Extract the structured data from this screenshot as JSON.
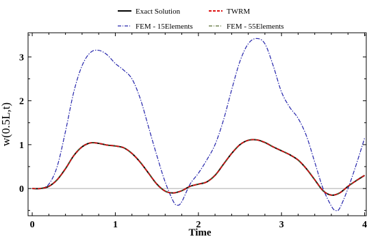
{
  "chart_data": {
    "type": "line",
    "title": "",
    "xlabel": "Time",
    "ylabel": "w(0.5L,t)",
    "xlim": [
      -0.05,
      4.02
    ],
    "ylim": [
      -0.62,
      3.55
    ],
    "xticks": [
      0,
      1,
      2,
      3,
      4
    ],
    "yticks": [
      0,
      1,
      2,
      3
    ],
    "xtick_labels": [
      "0",
      "1",
      "2",
      "3",
      "4"
    ],
    "ytick_labels": [
      "0",
      "1",
      "2",
      "3"
    ],
    "grid": false,
    "zero_line": true,
    "legend_position": "top",
    "series": [
      {
        "name": "Exact Solution",
        "color": "#000000",
        "style": "solid",
        "x": [
          0,
          0.1,
          0.2,
          0.3,
          0.4,
          0.5,
          0.6,
          0.7,
          0.8,
          0.9,
          1.0,
          1.1,
          1.2,
          1.3,
          1.4,
          1.5,
          1.6,
          1.7,
          1.8,
          1.9,
          2.0,
          2.1,
          2.2,
          2.3,
          2.4,
          2.5,
          2.6,
          2.7,
          2.8,
          2.9,
          3.0,
          3.1,
          3.2,
          3.3,
          3.4,
          3.5,
          3.6,
          3.7,
          3.8,
          3.9,
          4.0
        ],
        "y": [
          0,
          0.0,
          0.05,
          0.2,
          0.45,
          0.75,
          0.95,
          1.04,
          1.03,
          0.99,
          0.97,
          0.93,
          0.8,
          0.6,
          0.35,
          0.1,
          -0.06,
          -0.1,
          -0.05,
          0.05,
          0.1,
          0.15,
          0.3,
          0.55,
          0.8,
          1.0,
          1.1,
          1.11,
          1.05,
          0.95,
          0.86,
          0.77,
          0.65,
          0.45,
          0.2,
          -0.05,
          -0.15,
          -0.1,
          0.05,
          0.18,
          0.3
        ]
      },
      {
        "name": "TWRM",
        "color": "#dd1111",
        "style": "dashed",
        "x": [
          0,
          0.1,
          0.2,
          0.3,
          0.4,
          0.5,
          0.6,
          0.7,
          0.8,
          0.9,
          1.0,
          1.1,
          1.2,
          1.3,
          1.4,
          1.5,
          1.6,
          1.7,
          1.8,
          1.9,
          2.0,
          2.1,
          2.2,
          2.3,
          2.4,
          2.5,
          2.6,
          2.7,
          2.8,
          2.9,
          3.0,
          3.1,
          3.2,
          3.3,
          3.4,
          3.5,
          3.6,
          3.7,
          3.8,
          3.9,
          4.0
        ],
        "y": [
          0,
          0.0,
          0.05,
          0.2,
          0.45,
          0.75,
          0.95,
          1.04,
          1.03,
          0.99,
          0.97,
          0.93,
          0.8,
          0.6,
          0.35,
          0.1,
          -0.06,
          -0.1,
          -0.05,
          0.05,
          0.1,
          0.15,
          0.3,
          0.55,
          0.8,
          1.0,
          1.1,
          1.11,
          1.05,
          0.95,
          0.86,
          0.77,
          0.65,
          0.45,
          0.2,
          -0.05,
          -0.15,
          -0.1,
          0.05,
          0.18,
          0.3
        ]
      },
      {
        "name": "FEM - 15Elements",
        "color": "#2222aa",
        "style": "dashdot",
        "x": [
          0,
          0.1,
          0.2,
          0.3,
          0.4,
          0.5,
          0.6,
          0.7,
          0.8,
          0.9,
          1.0,
          1.1,
          1.2,
          1.3,
          1.4,
          1.5,
          1.6,
          1.7,
          1.75,
          1.8,
          1.9,
          2.0,
          2.1,
          2.2,
          2.3,
          2.4,
          2.5,
          2.6,
          2.7,
          2.8,
          2.9,
          3.0,
          3.1,
          3.2,
          3.3,
          3.4,
          3.5,
          3.6,
          3.65,
          3.7,
          3.8,
          3.9,
          4.0
        ],
        "y": [
          0,
          0.0,
          0.1,
          0.5,
          1.3,
          2.2,
          2.8,
          3.1,
          3.15,
          3.05,
          2.85,
          2.7,
          2.5,
          2.05,
          1.4,
          0.75,
          0.15,
          -0.3,
          -0.38,
          -0.3,
          0.1,
          0.35,
          0.65,
          1.0,
          1.55,
          2.25,
          2.9,
          3.3,
          3.42,
          3.3,
          2.8,
          2.2,
          1.85,
          1.6,
          1.2,
          0.6,
          0.0,
          -0.4,
          -0.5,
          -0.45,
          0.0,
          0.55,
          1.15
        ]
      },
      {
        "name": "FEM - 55Elements",
        "color": "#556b2f",
        "style": "dashdot",
        "x": [
          0,
          0.1,
          0.2,
          0.3,
          0.4,
          0.5,
          0.6,
          0.7,
          0.8,
          0.9,
          1.0,
          1.1,
          1.2,
          1.3,
          1.4,
          1.5,
          1.6,
          1.7,
          1.8,
          1.9,
          2.0,
          2.1,
          2.2,
          2.3,
          2.4,
          2.5,
          2.6,
          2.7,
          2.8,
          2.9,
          3.0,
          3.1,
          3.2,
          3.3,
          3.4,
          3.5,
          3.6,
          3.7,
          3.8,
          3.9,
          4.0
        ],
        "y": [
          0,
          0.0,
          0.05,
          0.2,
          0.45,
          0.75,
          0.95,
          1.04,
          1.03,
          0.99,
          0.97,
          0.93,
          0.8,
          0.6,
          0.35,
          0.1,
          -0.06,
          -0.1,
          -0.05,
          0.05,
          0.1,
          0.15,
          0.3,
          0.55,
          0.8,
          1.0,
          1.1,
          1.11,
          1.05,
          0.95,
          0.86,
          0.77,
          0.65,
          0.45,
          0.2,
          -0.05,
          -0.15,
          -0.1,
          0.05,
          0.18,
          0.3
        ]
      }
    ]
  }
}
